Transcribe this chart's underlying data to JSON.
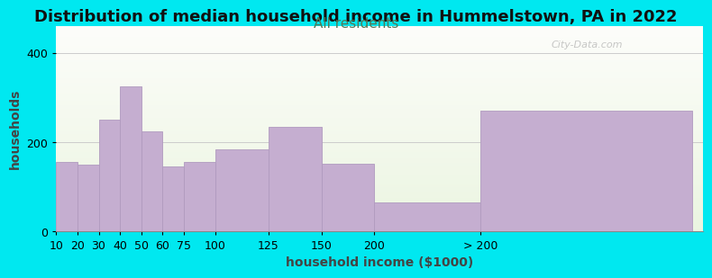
{
  "title": "Distribution of median household income in Hummelstown, PA in 2022",
  "subtitle": "All residents",
  "xlabel": "household income ($1000)",
  "ylabel": "households",
  "categories": [
    "10",
    "20",
    "30",
    "40",
    "50",
    "60",
    "75",
    "100",
    "125",
    "150",
    "200",
    "> 200"
  ],
  "values": [
    155,
    150,
    250,
    325,
    225,
    145,
    155,
    185,
    235,
    152,
    65,
    270
  ],
  "bar_color": "#c5aed0",
  "bar_edge_color": "#b09abf",
  "outer_bg": "#00e8f0",
  "ylim": [
    0,
    460
  ],
  "yticks": [
    0,
    200,
    400
  ],
  "title_fontsize": 13,
  "subtitle_fontsize": 11,
  "axis_label_fontsize": 10,
  "tick_fontsize": 9,
  "watermark_text": "City-Data.com",
  "title_color": "#111111",
  "subtitle_color": "#557755",
  "label_color": "#444444"
}
